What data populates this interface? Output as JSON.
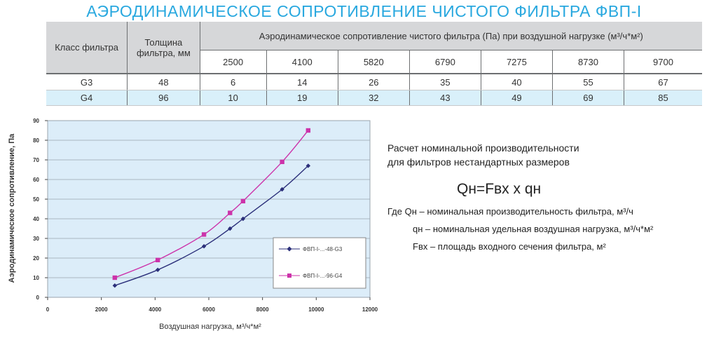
{
  "page": {
    "title": "АЭРОДИНАМИЧЕСКОЕ СОПРОТИВЛЕНИЕ ЧИСТОГО ФИЛЬТРА ФВП-I"
  },
  "table": {
    "col_class": "Класс фильтра",
    "col_thickness_line1": "Толщина",
    "col_thickness_line2": "фильтра, мм",
    "col_resistance": "Аэродинамическое сопротивление чистого фильтра (Па) при воздушной нагрузке (м³/ч*м²)",
    "loads": [
      "2500",
      "4100",
      "5820",
      "6790",
      "7275",
      "8730",
      "9700"
    ],
    "rows": [
      {
        "class": "G3",
        "thickness": "48",
        "values": [
          "6",
          "14",
          "26",
          "35",
          "40",
          "55",
          "67"
        ]
      },
      {
        "class": "G4",
        "thickness": "96",
        "values": [
          "10",
          "19",
          "32",
          "43",
          "49",
          "69",
          "85"
        ]
      }
    ]
  },
  "chart_data": {
    "type": "line",
    "xlabel": "Воздушная нагрузка, м³/ч*м²",
    "ylabel": "Аэродинамическое сопротивление, Па",
    "xlim": [
      0,
      12000
    ],
    "ylim": [
      0,
      90
    ],
    "x_ticks": [
      "0",
      "2000",
      "4000",
      "6000",
      "8000",
      "10000",
      "12000"
    ],
    "y_ticks": [
      "0",
      "10",
      "20",
      "30",
      "40",
      "50",
      "60",
      "70",
      "80",
      "90"
    ],
    "grid": true,
    "legend_position": "right",
    "x": [
      2500,
      4100,
      5820,
      6790,
      7275,
      8730,
      9700
    ],
    "series": [
      {
        "name": "ФВП-I-...-48-G3",
        "values": [
          6,
          14,
          26,
          35,
          40,
          55,
          67
        ],
        "color": "#2b2f7a"
      },
      {
        "name": "ФВП-I-...-96-G4",
        "values": [
          10,
          19,
          32,
          43,
          49,
          69,
          85
        ],
        "color": "#cc33aa"
      }
    ]
  },
  "info": {
    "heading_line1": "Расчет номинальной производительности",
    "heading_line2": "для фильтров нестандартных размеров",
    "formula": "Qн=Fвх x qн",
    "def_qn_total": "Где Qн – номинальная производительность фильтра, м³/ч",
    "def_qn_specific": "qн – номинальная удельная воздушная нагрузка, м³/ч*м²",
    "def_fvx": "Fвх – площадь входного сечения фильтра, м²"
  },
  "colors": {
    "title": "#29a8df",
    "table_header_bg": "#d6d7d9",
    "table_g4_bg": "#d9f0fa",
    "plot_bg": "#dcedf9"
  }
}
